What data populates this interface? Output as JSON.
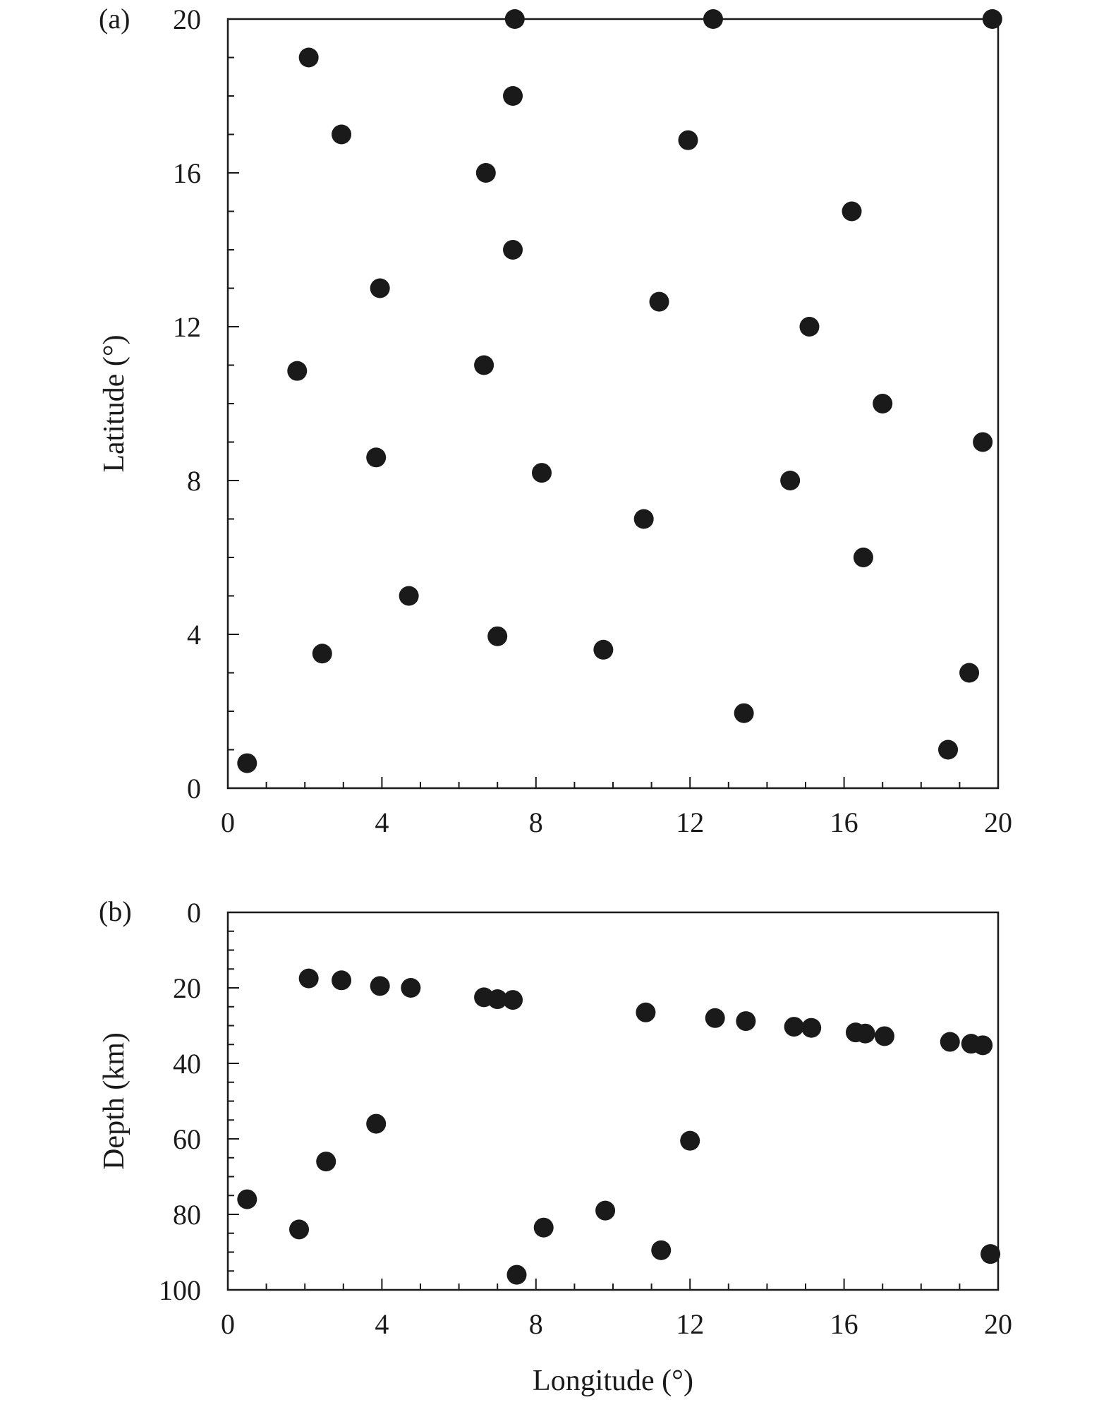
{
  "chart_data": [
    {
      "type": "scatter",
      "panel_label": "(a)",
      "xlabel": "",
      "ylabel": "Latitude (°)",
      "xlim": [
        0,
        20
      ],
      "ylim": [
        0,
        20
      ],
      "y_inverted": false,
      "x_ticks": [
        "0",
        "4",
        "8",
        "12",
        "16",
        "20"
      ],
      "y_ticks": [
        "0",
        "4",
        "8",
        "12",
        "16",
        "20"
      ],
      "grid": false,
      "marker_color": "#1a1a1a",
      "points": [
        {
          "x": 0.5,
          "y": 0.65
        },
        {
          "x": 2.1,
          "y": 19.0
        },
        {
          "x": 2.95,
          "y": 17.0
        },
        {
          "x": 1.8,
          "y": 10.85
        },
        {
          "x": 3.95,
          "y": 13.0
        },
        {
          "x": 3.85,
          "y": 8.6
        },
        {
          "x": 2.45,
          "y": 3.5
        },
        {
          "x": 4.7,
          "y": 5.0
        },
        {
          "x": 6.7,
          "y": 16.0
        },
        {
          "x": 6.65,
          "y": 11.0
        },
        {
          "x": 7.45,
          "y": 20.0
        },
        {
          "x": 7.4,
          "y": 18.0
        },
        {
          "x": 7.4,
          "y": 14.0
        },
        {
          "x": 7.0,
          "y": 3.95
        },
        {
          "x": 8.15,
          "y": 8.2
        },
        {
          "x": 9.75,
          "y": 3.6
        },
        {
          "x": 10.8,
          "y": 7.0
        },
        {
          "x": 11.2,
          "y": 12.65
        },
        {
          "x": 11.95,
          "y": 16.85
        },
        {
          "x": 12.6,
          "y": 20.0
        },
        {
          "x": 13.4,
          "y": 1.95
        },
        {
          "x": 14.6,
          "y": 8.0
        },
        {
          "x": 15.1,
          "y": 12.0
        },
        {
          "x": 16.2,
          "y": 15.0
        },
        {
          "x": 16.5,
          "y": 6.0
        },
        {
          "x": 17.0,
          "y": 10.0
        },
        {
          "x": 18.7,
          "y": 1.0
        },
        {
          "x": 19.25,
          "y": 3.0
        },
        {
          "x": 19.6,
          "y": 9.0
        },
        {
          "x": 19.85,
          "y": 20.0
        }
      ]
    },
    {
      "type": "scatter",
      "panel_label": "(b)",
      "xlabel": "Longitude (°)",
      "ylabel": "Depth (km)",
      "xlim": [
        0,
        20
      ],
      "ylim": [
        0,
        100
      ],
      "y_inverted": true,
      "x_ticks": [
        "0",
        "4",
        "8",
        "12",
        "16",
        "20"
      ],
      "y_ticks": [
        "0",
        "20",
        "40",
        "60",
        "80",
        "100"
      ],
      "grid": false,
      "marker_color": "#1a1a1a",
      "points": [
        {
          "x": 0.5,
          "y": 76
        },
        {
          "x": 1.85,
          "y": 84
        },
        {
          "x": 2.1,
          "y": 17.5
        },
        {
          "x": 2.55,
          "y": 66
        },
        {
          "x": 2.95,
          "y": 18
        },
        {
          "x": 3.85,
          "y": 56
        },
        {
          "x": 3.95,
          "y": 19.5
        },
        {
          "x": 4.75,
          "y": 20
        },
        {
          "x": 6.65,
          "y": 22.5
        },
        {
          "x": 7.0,
          "y": 23
        },
        {
          "x": 7.4,
          "y": 23.2
        },
        {
          "x": 7.5,
          "y": 96
        },
        {
          "x": 8.2,
          "y": 83.5
        },
        {
          "x": 9.8,
          "y": 79
        },
        {
          "x": 10.85,
          "y": 26.5
        },
        {
          "x": 11.25,
          "y": 89.5
        },
        {
          "x": 12.0,
          "y": 60.5
        },
        {
          "x": 12.65,
          "y": 28
        },
        {
          "x": 13.45,
          "y": 28.8
        },
        {
          "x": 14.7,
          "y": 30.3
        },
        {
          "x": 15.15,
          "y": 30.6
        },
        {
          "x": 16.3,
          "y": 31.8
        },
        {
          "x": 16.55,
          "y": 32.1
        },
        {
          "x": 17.05,
          "y": 32.8
        },
        {
          "x": 18.75,
          "y": 34.3
        },
        {
          "x": 19.3,
          "y": 34.8
        },
        {
          "x": 19.6,
          "y": 35.2
        },
        {
          "x": 19.8,
          "y": 90.5
        }
      ]
    }
  ]
}
